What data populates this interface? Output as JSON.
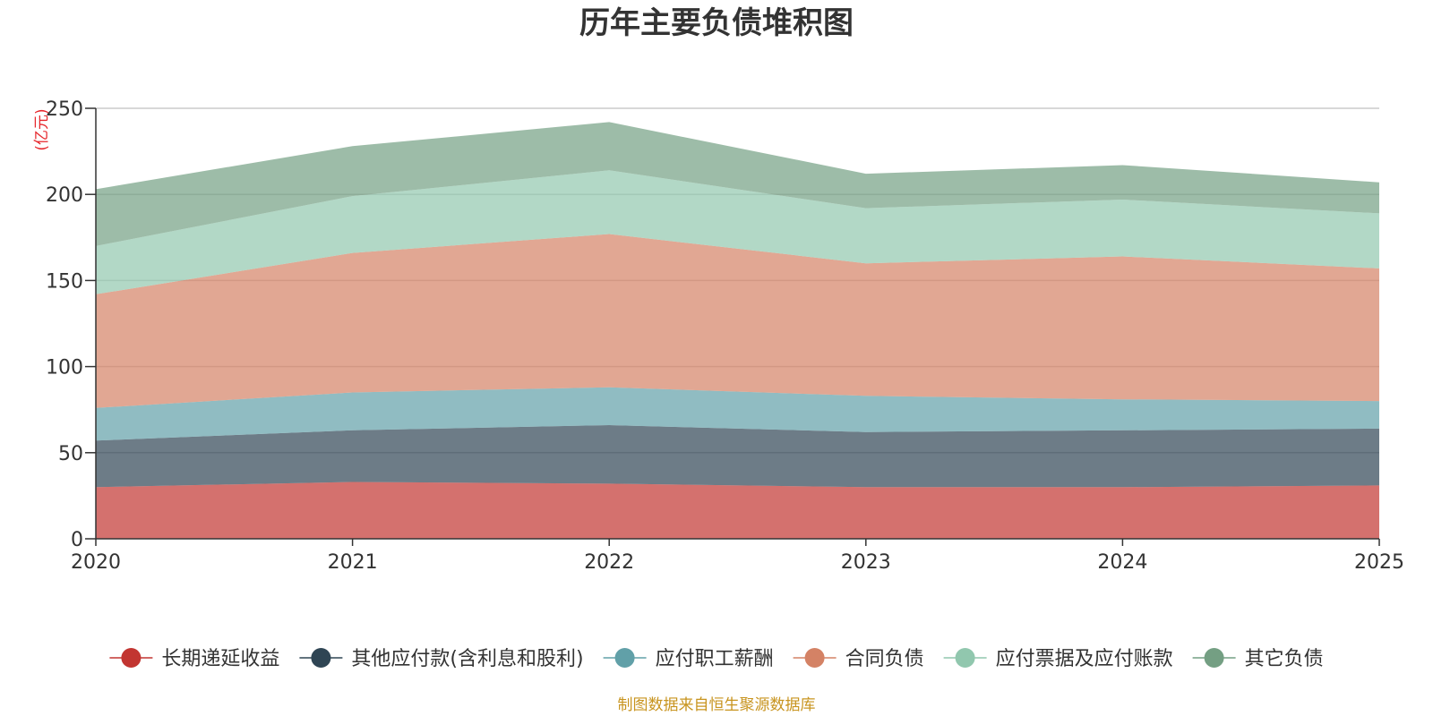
{
  "chart_data": {
    "type": "area",
    "stacked": true,
    "title": "历年主要负债堆积图",
    "ylabel": "(亿元)",
    "xlabel": "",
    "categories": [
      "2020",
      "2021",
      "2022",
      "2023",
      "2024",
      "2025"
    ],
    "ylim": [
      0,
      250
    ],
    "yticks": [
      "0",
      "50",
      "100",
      "150",
      "200",
      "250"
    ],
    "grid": true,
    "legend_position": "bottom",
    "series": [
      {
        "name": "长期递延收益",
        "color": "#c23531",
        "values": [
          30,
          33,
          32,
          30,
          30,
          31
        ]
      },
      {
        "name": "其他应付款(含利息和股利)",
        "color": "#2f4554",
        "values": [
          27,
          30,
          34,
          32,
          33,
          33
        ]
      },
      {
        "name": "应付职工薪酬",
        "color": "#61a0a8",
        "values": [
          19,
          22,
          22,
          21,
          18,
          16
        ]
      },
      {
        "name": "合同负债",
        "color": "#d48265",
        "values": [
          66,
          81,
          89,
          77,
          83,
          77
        ]
      },
      {
        "name": "应付票据及应付账款",
        "color": "#91c7ae",
        "values": [
          28,
          33,
          37,
          32,
          33,
          32
        ]
      },
      {
        "name": "其它负债",
        "color": "#749f83",
        "values": [
          33,
          29,
          28,
          20,
          20,
          18
        ]
      }
    ],
    "source_note": "制图数据来自恒生聚源数据库"
  }
}
